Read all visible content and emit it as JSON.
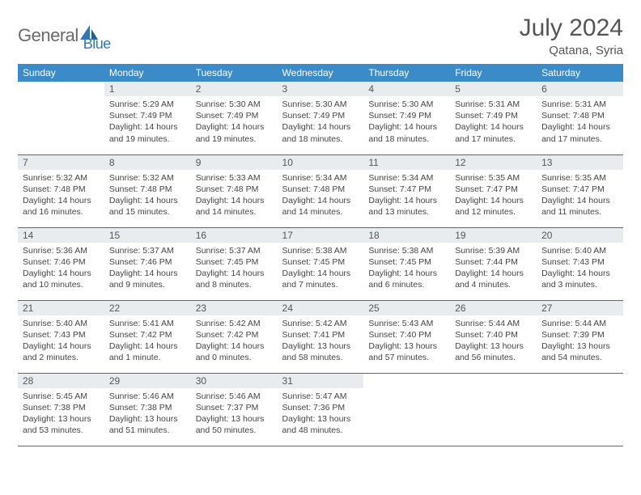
{
  "brand": {
    "text1": "General",
    "text2": "Blue",
    "accent": "#2f77b8",
    "gray": "#6b6b6b"
  },
  "title": "July 2024",
  "location": "Qatana, Syria",
  "header_bg": "#3b8bc9",
  "row_divider": "#3b6fa0",
  "daynum_bg": "#e8ecef",
  "weekdays": [
    "Sunday",
    "Monday",
    "Tuesday",
    "Wednesday",
    "Thursday",
    "Friday",
    "Saturday"
  ],
  "first_weekday_index": 1,
  "days_in_month": 31,
  "days": {
    "1": {
      "sunrise": "5:29 AM",
      "sunset": "7:49 PM",
      "daylight": "14 hours and 19 minutes."
    },
    "2": {
      "sunrise": "5:30 AM",
      "sunset": "7:49 PM",
      "daylight": "14 hours and 19 minutes."
    },
    "3": {
      "sunrise": "5:30 AM",
      "sunset": "7:49 PM",
      "daylight": "14 hours and 18 minutes."
    },
    "4": {
      "sunrise": "5:30 AM",
      "sunset": "7:49 PM",
      "daylight": "14 hours and 18 minutes."
    },
    "5": {
      "sunrise": "5:31 AM",
      "sunset": "7:49 PM",
      "daylight": "14 hours and 17 minutes."
    },
    "6": {
      "sunrise": "5:31 AM",
      "sunset": "7:48 PM",
      "daylight": "14 hours and 17 minutes."
    },
    "7": {
      "sunrise": "5:32 AM",
      "sunset": "7:48 PM",
      "daylight": "14 hours and 16 minutes."
    },
    "8": {
      "sunrise": "5:32 AM",
      "sunset": "7:48 PM",
      "daylight": "14 hours and 15 minutes."
    },
    "9": {
      "sunrise": "5:33 AM",
      "sunset": "7:48 PM",
      "daylight": "14 hours and 14 minutes."
    },
    "10": {
      "sunrise": "5:34 AM",
      "sunset": "7:48 PM",
      "daylight": "14 hours and 14 minutes."
    },
    "11": {
      "sunrise": "5:34 AM",
      "sunset": "7:47 PM",
      "daylight": "14 hours and 13 minutes."
    },
    "12": {
      "sunrise": "5:35 AM",
      "sunset": "7:47 PM",
      "daylight": "14 hours and 12 minutes."
    },
    "13": {
      "sunrise": "5:35 AM",
      "sunset": "7:47 PM",
      "daylight": "14 hours and 11 minutes."
    },
    "14": {
      "sunrise": "5:36 AM",
      "sunset": "7:46 PM",
      "daylight": "14 hours and 10 minutes."
    },
    "15": {
      "sunrise": "5:37 AM",
      "sunset": "7:46 PM",
      "daylight": "14 hours and 9 minutes."
    },
    "16": {
      "sunrise": "5:37 AM",
      "sunset": "7:45 PM",
      "daylight": "14 hours and 8 minutes."
    },
    "17": {
      "sunrise": "5:38 AM",
      "sunset": "7:45 PM",
      "daylight": "14 hours and 7 minutes."
    },
    "18": {
      "sunrise": "5:38 AM",
      "sunset": "7:45 PM",
      "daylight": "14 hours and 6 minutes."
    },
    "19": {
      "sunrise": "5:39 AM",
      "sunset": "7:44 PM",
      "daylight": "14 hours and 4 minutes."
    },
    "20": {
      "sunrise": "5:40 AM",
      "sunset": "7:43 PM",
      "daylight": "14 hours and 3 minutes."
    },
    "21": {
      "sunrise": "5:40 AM",
      "sunset": "7:43 PM",
      "daylight": "14 hours and 2 minutes."
    },
    "22": {
      "sunrise": "5:41 AM",
      "sunset": "7:42 PM",
      "daylight": "14 hours and 1 minute."
    },
    "23": {
      "sunrise": "5:42 AM",
      "sunset": "7:42 PM",
      "daylight": "14 hours and 0 minutes."
    },
    "24": {
      "sunrise": "5:42 AM",
      "sunset": "7:41 PM",
      "daylight": "13 hours and 58 minutes."
    },
    "25": {
      "sunrise": "5:43 AM",
      "sunset": "7:40 PM",
      "daylight": "13 hours and 57 minutes."
    },
    "26": {
      "sunrise": "5:44 AM",
      "sunset": "7:40 PM",
      "daylight": "13 hours and 56 minutes."
    },
    "27": {
      "sunrise": "5:44 AM",
      "sunset": "7:39 PM",
      "daylight": "13 hours and 54 minutes."
    },
    "28": {
      "sunrise": "5:45 AM",
      "sunset": "7:38 PM",
      "daylight": "13 hours and 53 minutes."
    },
    "29": {
      "sunrise": "5:46 AM",
      "sunset": "7:38 PM",
      "daylight": "13 hours and 51 minutes."
    },
    "30": {
      "sunrise": "5:46 AM",
      "sunset": "7:37 PM",
      "daylight": "13 hours and 50 minutes."
    },
    "31": {
      "sunrise": "5:47 AM",
      "sunset": "7:36 PM",
      "daylight": "13 hours and 48 minutes."
    }
  },
  "labels": {
    "sunrise": "Sunrise:",
    "sunset": "Sunset:",
    "daylight": "Daylight:"
  }
}
